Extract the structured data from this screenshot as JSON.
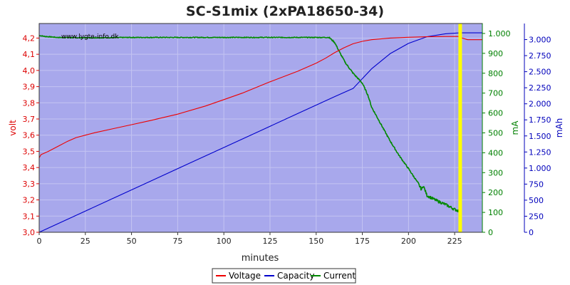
{
  "chart_data": {
    "type": "line",
    "title": "SC-S1mix (2xPA18650-34)",
    "watermark": "www.lygte-info.dk",
    "xlabel": "minutes",
    "xlim": [
      0,
      240
    ],
    "x_ticks": [
      0,
      25,
      50,
      75,
      100,
      125,
      150,
      175,
      200,
      225
    ],
    "background_color": "#a8a8ec",
    "grid_color": "#c4c4f2",
    "marker": {
      "x": 228,
      "color": "#ffff00"
    },
    "axes": {
      "volt": {
        "label": "volt",
        "color": "#dd0000",
        "range": [
          3.0,
          4.29
        ],
        "ticks": [
          "3,0",
          "3,1",
          "3,2",
          "3,3",
          "3,4",
          "3,5",
          "3,6",
          "3,7",
          "3,8",
          "3,9",
          "4,0",
          "4,1",
          "4,2"
        ],
        "tick_values": [
          3.0,
          3.1,
          3.2,
          3.3,
          3.4,
          3.5,
          3.6,
          3.7,
          3.8,
          3.9,
          4.0,
          4.1,
          4.2
        ]
      },
      "mA": {
        "label": "mA",
        "color": "#008000",
        "range": [
          0,
          1050
        ],
        "ticks": [
          "0",
          "100",
          "200",
          "300",
          "400",
          "500",
          "600",
          "700",
          "800",
          "900",
          "1.000"
        ],
        "tick_values": [
          0,
          100,
          200,
          300,
          400,
          500,
          600,
          700,
          800,
          900,
          1000
        ]
      },
      "mAh": {
        "label": "mAh",
        "color": "#0000bb",
        "range": [
          0,
          3250
        ],
        "ticks": [
          "0",
          "250",
          "500",
          "750",
          "1.000",
          "1.250",
          "1.500",
          "1.750",
          "2.000",
          "2.250",
          "2.500",
          "2.750",
          "3.000"
        ],
        "tick_values": [
          0,
          250,
          500,
          750,
          1000,
          1250,
          1500,
          1750,
          2000,
          2250,
          2500,
          2750,
          3000
        ]
      }
    },
    "series": [
      {
        "name": "Voltage",
        "axis": "volt",
        "color": "#ee0000",
        "x": [
          0,
          1,
          5,
          10,
          15,
          20,
          25,
          30,
          40,
          50,
          60,
          75,
          90,
          100,
          110,
          125,
          140,
          150,
          155,
          160,
          165,
          170,
          175,
          180,
          190,
          200,
          210,
          220,
          228,
          229,
          232,
          240
        ],
        "y": [
          3.46,
          3.48,
          3.5,
          3.53,
          3.56,
          3.585,
          3.6,
          3.615,
          3.64,
          3.665,
          3.69,
          3.73,
          3.78,
          3.82,
          3.86,
          3.93,
          3.995,
          4.045,
          4.075,
          4.11,
          4.14,
          4.165,
          4.18,
          4.19,
          4.2,
          4.205,
          4.208,
          4.21,
          4.21,
          4.2,
          4.19,
          4.19
        ]
      },
      {
        "name": "Capacity",
        "axis": "mAh",
        "color": "#0000cc",
        "x": [
          0,
          20,
          40,
          60,
          80,
          100,
          120,
          140,
          160,
          170,
          180,
          190,
          200,
          210,
          220,
          228,
          240
        ],
        "y": [
          0,
          264,
          528,
          792,
          1056,
          1320,
          1584,
          1848,
          2112,
          2240,
          2545,
          2780,
          2940,
          3045,
          3090,
          3105,
          3105
        ]
      },
      {
        "name": "Current",
        "axis": "mA",
        "color": "#008800",
        "x": [
          0,
          3,
          10,
          25,
          50,
          75,
          100,
          125,
          150,
          157,
          160,
          163,
          166,
          170,
          175,
          178,
          180,
          185,
          190,
          195,
          200,
          205,
          207,
          208,
          210,
          215,
          220,
          225,
          228
        ],
        "y": [
          990,
          985,
          980,
          978,
          980,
          980,
          980,
          980,
          980,
          980,
          955,
          900,
          850,
          800,
          750,
          690,
          630,
          545,
          460,
          385,
          320,
          250,
          215,
          235,
          185,
          160,
          140,
          115,
          105
        ]
      }
    ]
  },
  "legend": [
    {
      "label": "Voltage",
      "color": "#ee0000"
    },
    {
      "label": "Capacity",
      "color": "#0000cc"
    },
    {
      "label": "Current",
      "color": "#008800"
    }
  ]
}
